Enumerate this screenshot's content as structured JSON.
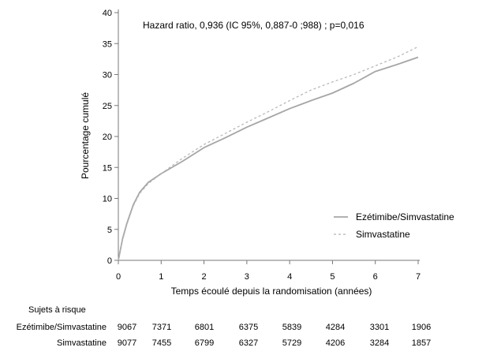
{
  "chart_data": {
    "type": "line",
    "title": "",
    "annotation": "Hazard  ratio, 0,936 (IC 95%, 0,887-0  ;988) ; p=0,016",
    "xlabel": "Temps écoulé depuis la randomisation (années)",
    "ylabel": "Pourcentage cumulé",
    "xlim": [
      0,
      7
    ],
    "ylim": [
      0,
      40
    ],
    "x_ticks": [
      0,
      1,
      2,
      3,
      4,
      5,
      6,
      7
    ],
    "y_ticks": [
      0,
      5,
      10,
      15,
      20,
      25,
      30,
      35,
      40
    ],
    "grid": false,
    "legend_position": "lower-right",
    "series": [
      {
        "name": "Ezétimibe/Simvastatine",
        "style": "solid",
        "color": "#a6a6a6",
        "points": [
          [
            0,
            0
          ],
          [
            0.1,
            3.5
          ],
          [
            0.2,
            6
          ],
          [
            0.35,
            9
          ],
          [
            0.5,
            11
          ],
          [
            0.7,
            12.6
          ],
          [
            1,
            14
          ],
          [
            1.5,
            16
          ],
          [
            2,
            18.2
          ],
          [
            2.5,
            19.8
          ],
          [
            3,
            21.5
          ],
          [
            3.5,
            23
          ],
          [
            4,
            24.5
          ],
          [
            4.5,
            25.8
          ],
          [
            5,
            27
          ],
          [
            5.5,
            28.6
          ],
          [
            6,
            30.5
          ],
          [
            6.5,
            31.6
          ],
          [
            7,
            32.8
          ]
        ]
      },
      {
        "name": "Simvastatine",
        "style": "dashed",
        "color": "#b3b3b3",
        "points": [
          [
            0,
            0
          ],
          [
            0.1,
            3.3
          ],
          [
            0.2,
            5.8
          ],
          [
            0.35,
            8.8
          ],
          [
            0.5,
            10.8
          ],
          [
            0.7,
            12.4
          ],
          [
            1,
            14
          ],
          [
            1.5,
            16.5
          ],
          [
            2,
            18.7
          ],
          [
            2.5,
            20.5
          ],
          [
            3,
            22.3
          ],
          [
            3.5,
            24
          ],
          [
            4,
            25.8
          ],
          [
            4.5,
            27.5
          ],
          [
            5,
            28.8
          ],
          [
            5.5,
            30
          ],
          [
            6,
            31.4
          ],
          [
            6.5,
            32.8
          ],
          [
            7,
            34.5
          ]
        ]
      }
    ],
    "risk_table": {
      "header": "Sujets à risque",
      "rows": [
        {
          "label": "Ezétimibe/Simvastatine",
          "values": [
            "9067",
            "7371",
            "6801",
            "6375",
            "5839",
            "4284",
            "3301",
            "1906"
          ]
        },
        {
          "label": "Simvastatine",
          "values": [
            "9077",
            "7455",
            "6799",
            "6327",
            "5729",
            "4206",
            "3284",
            "1857"
          ]
        }
      ]
    }
  }
}
